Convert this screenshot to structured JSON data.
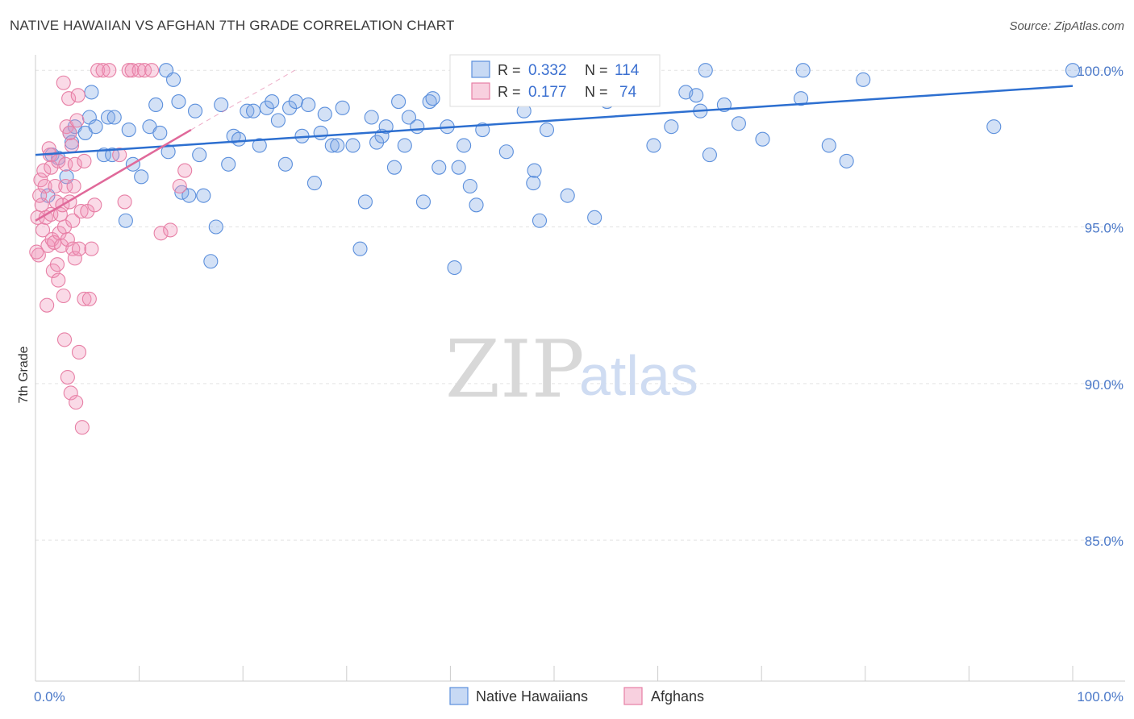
{
  "title": "NATIVE HAWAIIAN VS AFGHAN 7TH GRADE CORRELATION CHART",
  "source": "Source: ZipAtlas.com",
  "watermark": {
    "zip": "ZIP",
    "atlas": "atlas"
  },
  "colors": {
    "blue": "#5b8fdc",
    "blue_fill": "rgba(130,170,230,0.35)",
    "pink": "#e77fa5",
    "pink_fill": "rgba(240,150,185,0.35)",
    "blue_line": "#2d6fd0",
    "pink_line": "#e0699a",
    "grid": "#e3e3e3"
  },
  "stats": {
    "r_label": "R =",
    "n_label": "N =",
    "blue": {
      "r": "0.332",
      "n": "114"
    },
    "pink": {
      "r": "0.177",
      "n": "74"
    }
  },
  "chart_data": {
    "type": "scatter",
    "title": "NATIVE HAWAIIAN VS AFGHAN 7TH GRADE CORRELATION CHART",
    "xlabel": "",
    "ylabel": "7th Grade",
    "xlim": [
      0,
      100
    ],
    "ylim": [
      80.5,
      100.7
    ],
    "x_tick_labels": [
      "0.0%",
      "100.0%"
    ],
    "y_ticks": [
      85,
      90,
      95,
      100
    ],
    "y_tick_labels": [
      "85.0%",
      "90.0%",
      "95.0%",
      "100.0%"
    ],
    "legend": [
      "Native Hawaiians",
      "Afghans"
    ],
    "series": [
      {
        "name": "Native Hawaiians",
        "trend": {
          "x": [
            0,
            100
          ],
          "y": [
            97.3,
            99.5
          ]
        },
        "points": [
          [
            1.2,
            96.0
          ],
          [
            1.6,
            97.3
          ],
          [
            2.2,
            97.2
          ],
          [
            3.0,
            96.6
          ],
          [
            3.3,
            98.0
          ],
          [
            3.5,
            97.7
          ],
          [
            3.8,
            98.2
          ],
          [
            4.8,
            98.0
          ],
          [
            5.2,
            98.5
          ],
          [
            5.4,
            99.3
          ],
          [
            5.8,
            98.2
          ],
          [
            6.6,
            97.3
          ],
          [
            7.0,
            98.5
          ],
          [
            7.4,
            97.3
          ],
          [
            7.6,
            98.5
          ],
          [
            8.7,
            95.2
          ],
          [
            9.4,
            97.0
          ],
          [
            9.0,
            98.1
          ],
          [
            10.2,
            96.6
          ],
          [
            11.0,
            98.2
          ],
          [
            11.6,
            98.9
          ],
          [
            12.0,
            98.0
          ],
          [
            12.6,
            100.0
          ],
          [
            13.3,
            99.7
          ],
          [
            13.8,
            99.0
          ],
          [
            12.8,
            97.4
          ],
          [
            14.1,
            96.1
          ],
          [
            14.8,
            96.0
          ],
          [
            15.4,
            98.7
          ],
          [
            15.8,
            97.3
          ],
          [
            16.2,
            96.0
          ],
          [
            16.9,
            93.9
          ],
          [
            17.4,
            95.0
          ],
          [
            17.9,
            98.9
          ],
          [
            18.6,
            97.0
          ],
          [
            19.1,
            97.9
          ],
          [
            19.6,
            97.8
          ],
          [
            20.4,
            98.7
          ],
          [
            21.0,
            98.7
          ],
          [
            21.6,
            97.6
          ],
          [
            22.3,
            98.8
          ],
          [
            22.8,
            99.0
          ],
          [
            23.4,
            98.4
          ],
          [
            24.1,
            97.0
          ],
          [
            24.5,
            98.8
          ],
          [
            25.1,
            99.0
          ],
          [
            25.7,
            97.9
          ],
          [
            26.3,
            98.9
          ],
          [
            26.9,
            96.4
          ],
          [
            27.5,
            98.0
          ],
          [
            27.9,
            98.6
          ],
          [
            28.6,
            97.6
          ],
          [
            29.1,
            97.6
          ],
          [
            29.6,
            98.8
          ],
          [
            30.6,
            97.6
          ],
          [
            31.3,
            94.3
          ],
          [
            31.8,
            95.8
          ],
          [
            32.4,
            98.5
          ],
          [
            32.9,
            97.7
          ],
          [
            33.4,
            97.9
          ],
          [
            33.8,
            98.2
          ],
          [
            34.6,
            96.9
          ],
          [
            35.0,
            99.0
          ],
          [
            35.6,
            97.6
          ],
          [
            36.0,
            98.5
          ],
          [
            36.8,
            98.2
          ],
          [
            37.4,
            95.8
          ],
          [
            38.0,
            99.0
          ],
          [
            38.3,
            99.1
          ],
          [
            38.9,
            96.9
          ],
          [
            39.7,
            98.2
          ],
          [
            40.4,
            93.7
          ],
          [
            40.8,
            96.9
          ],
          [
            41.3,
            97.6
          ],
          [
            41.9,
            96.3
          ],
          [
            42.5,
            95.7
          ],
          [
            43.1,
            98.1
          ],
          [
            43.8,
            99.5
          ],
          [
            44.4,
            99.2
          ],
          [
            45.4,
            97.4
          ],
          [
            46.2,
            100.0
          ],
          [
            47.1,
            98.7
          ],
          [
            48.0,
            96.4
          ],
          [
            48.1,
            96.8
          ],
          [
            48.6,
            95.2
          ],
          [
            49.3,
            98.1
          ],
          [
            49.5,
            99.1
          ],
          [
            50.0,
            100.0
          ],
          [
            51.3,
            96.0
          ],
          [
            52.6,
            99.1
          ],
          [
            53.9,
            95.3
          ],
          [
            54.4,
            99.3
          ],
          [
            55.1,
            99.0
          ],
          [
            57.5,
            100.0
          ],
          [
            59.0,
            100.0
          ],
          [
            59.6,
            97.6
          ],
          [
            61.3,
            98.2
          ],
          [
            62.7,
            99.3
          ],
          [
            63.7,
            99.2
          ],
          [
            64.1,
            98.7
          ],
          [
            64.6,
            100.0
          ],
          [
            65.0,
            97.3
          ],
          [
            66.4,
            98.9
          ],
          [
            67.8,
            98.3
          ],
          [
            70.1,
            97.8
          ],
          [
            73.8,
            99.1
          ],
          [
            74.0,
            100.0
          ],
          [
            76.5,
            97.6
          ],
          [
            78.2,
            97.1
          ],
          [
            79.8,
            99.7
          ],
          [
            92.4,
            98.2
          ],
          [
            100.0,
            100.0
          ]
        ]
      },
      {
        "name": "Afghans",
        "trend": {
          "x": [
            0,
            15
          ],
          "y": [
            95.2,
            98.1
          ]
        },
        "trend_ext": {
          "x": [
            15,
            25
          ],
          "y": [
            98.1,
            100.0
          ]
        },
        "points": [
          [
            0.2,
            95.3
          ],
          [
            0.3,
            94.1
          ],
          [
            0.5,
            96.5
          ],
          [
            0.6,
            95.7
          ],
          [
            0.7,
            94.9
          ],
          [
            0.8,
            96.8
          ],
          [
            0.9,
            96.3
          ],
          [
            1.0,
            95.3
          ],
          [
            1.1,
            92.5
          ],
          [
            1.2,
            94.4
          ],
          [
            1.3,
            97.5
          ],
          [
            1.4,
            97.3
          ],
          [
            1.5,
            96.9
          ],
          [
            1.5,
            95.4
          ],
          [
            1.6,
            94.6
          ],
          [
            1.7,
            93.6
          ],
          [
            1.8,
            94.5
          ],
          [
            1.9,
            96.3
          ],
          [
            2.0,
            95.8
          ],
          [
            2.1,
            93.8
          ],
          [
            2.2,
            97.1
          ],
          [
            2.2,
            93.3
          ],
          [
            2.3,
            94.8
          ],
          [
            2.4,
            95.4
          ],
          [
            2.5,
            94.4
          ],
          [
            2.6,
            95.7
          ],
          [
            2.7,
            92.8
          ],
          [
            2.7,
            99.6
          ],
          [
            2.8,
            95.0
          ],
          [
            2.8,
            91.4
          ],
          [
            2.9,
            96.3
          ],
          [
            2.9,
            97.0
          ],
          [
            3.0,
            98.2
          ],
          [
            3.1,
            94.6
          ],
          [
            3.1,
            90.2
          ],
          [
            3.2,
            99.1
          ],
          [
            3.3,
            95.8
          ],
          [
            3.3,
            98.0
          ],
          [
            3.4,
            89.7
          ],
          [
            3.5,
            97.6
          ],
          [
            3.6,
            95.2
          ],
          [
            3.6,
            94.3
          ],
          [
            3.7,
            96.3
          ],
          [
            3.8,
            94.0
          ],
          [
            3.8,
            97.0
          ],
          [
            3.9,
            89.4
          ],
          [
            4.0,
            98.4
          ],
          [
            4.1,
            99.2
          ],
          [
            4.2,
            94.3
          ],
          [
            4.2,
            91.0
          ],
          [
            4.4,
            95.5
          ],
          [
            4.5,
            88.6
          ],
          [
            4.7,
            97.1
          ],
          [
            4.7,
            92.7
          ],
          [
            5.0,
            95.5
          ],
          [
            5.2,
            92.7
          ],
          [
            5.4,
            94.3
          ],
          [
            5.7,
            95.7
          ],
          [
            6.0,
            100.0
          ],
          [
            6.5,
            100.0
          ],
          [
            7.1,
            100.0
          ],
          [
            8.1,
            97.3
          ],
          [
            8.6,
            95.8
          ],
          [
            9.0,
            100.0
          ],
          [
            9.3,
            100.0
          ],
          [
            10.0,
            100.0
          ],
          [
            10.5,
            100.0
          ],
          [
            11.2,
            100.0
          ],
          [
            12.1,
            94.8
          ],
          [
            13.0,
            94.9
          ],
          [
            13.9,
            96.3
          ],
          [
            14.4,
            96.8
          ],
          [
            0.1,
            94.2
          ],
          [
            0.4,
            96.0
          ]
        ]
      }
    ]
  }
}
